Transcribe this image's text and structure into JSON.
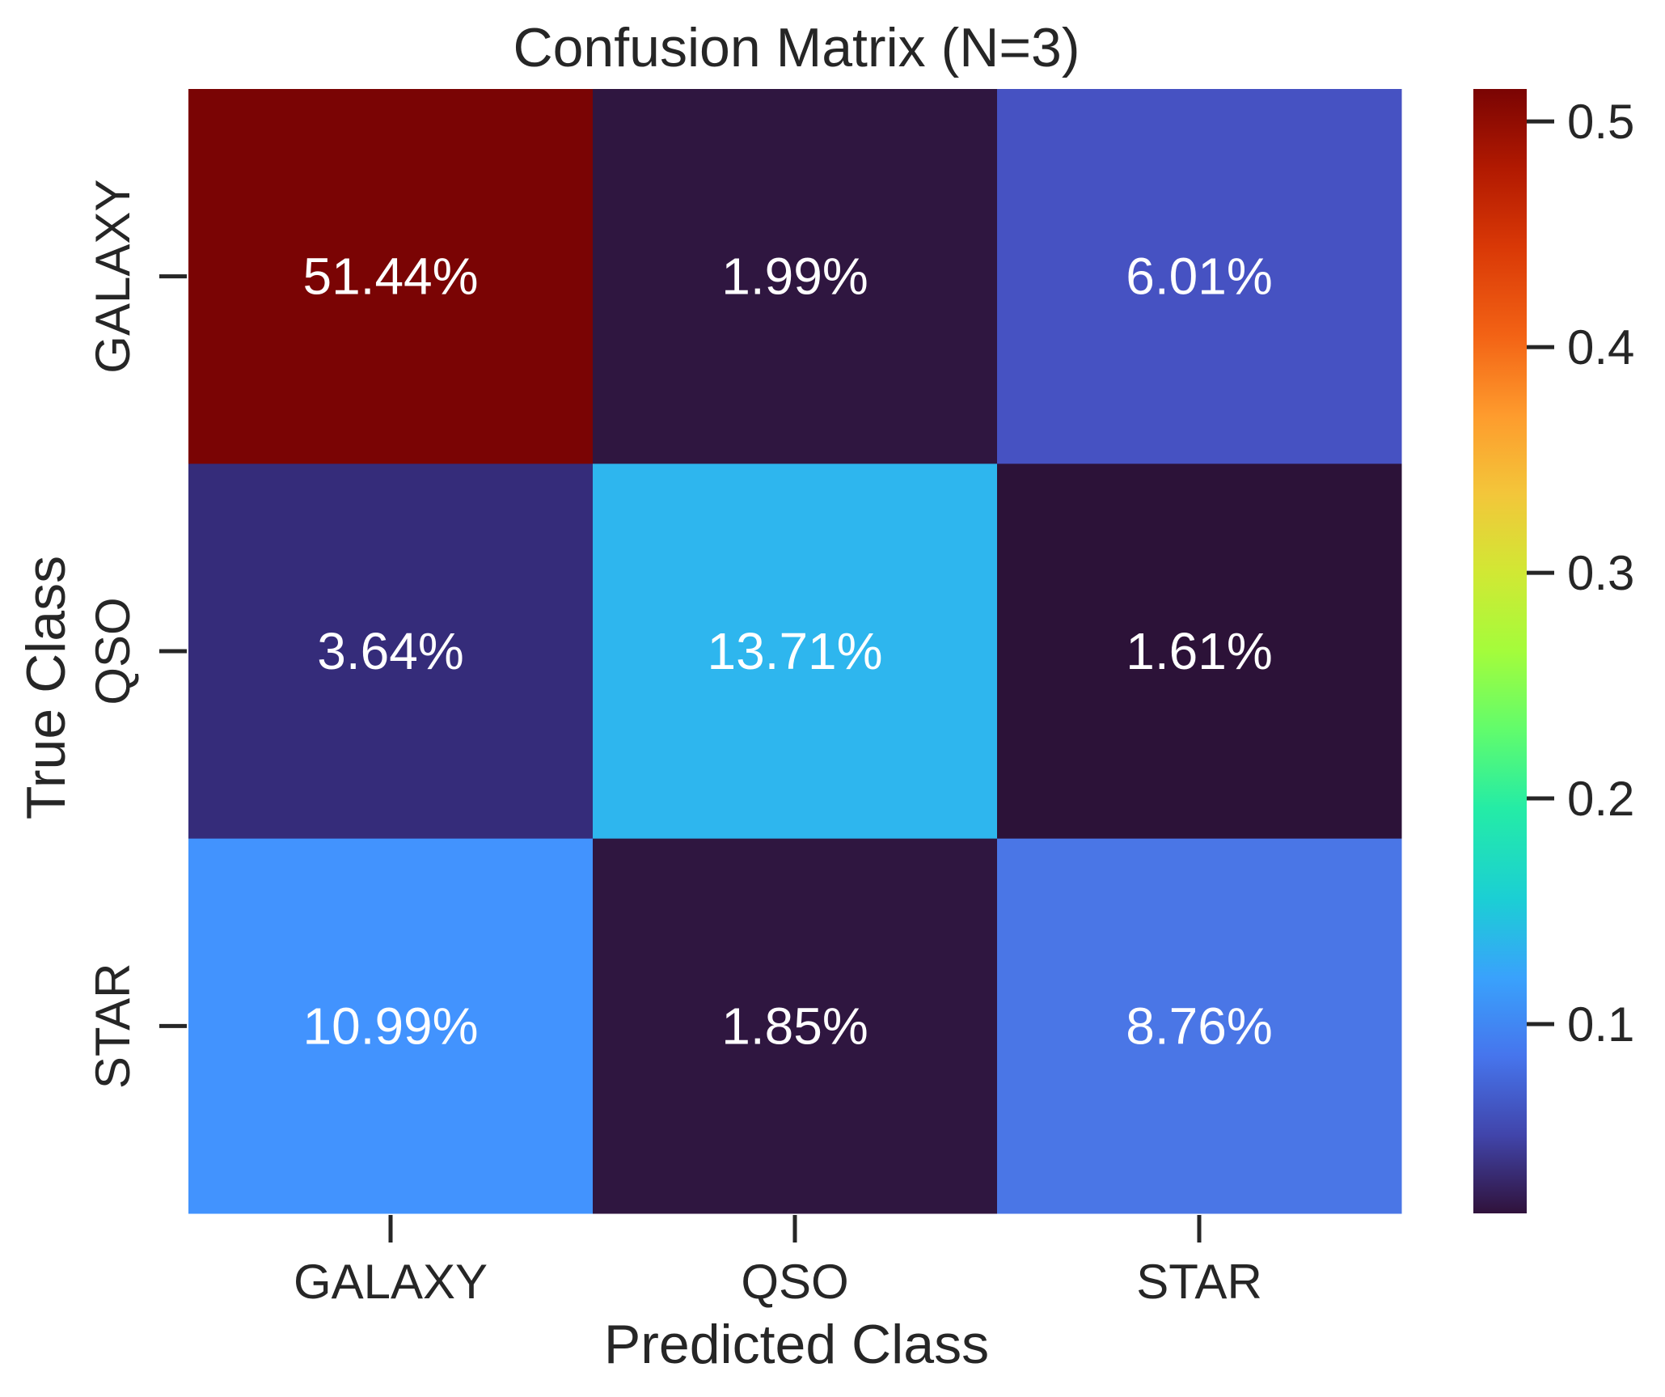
{
  "chart_data": {
    "type": "heatmap",
    "title": "Confusion Matrix (N=3)",
    "xlabel": "Predicted Class",
    "ylabel": "True Class",
    "x_categories": [
      "GALAXY",
      "QSO",
      "STAR"
    ],
    "y_categories": [
      "GALAXY",
      "QSO",
      "STAR"
    ],
    "values": [
      [
        0.5144,
        0.0199,
        0.0601
      ],
      [
        0.0364,
        0.1371,
        0.0161
      ],
      [
        0.1099,
        0.0185,
        0.0876
      ]
    ],
    "annotations": [
      [
        "51.44%",
        "1.99%",
        "6.01%"
      ],
      [
        "3.64%",
        "13.71%",
        "1.61%"
      ],
      [
        "10.99%",
        "1.85%",
        "8.76%"
      ]
    ],
    "colorbar": {
      "colormap": "turbo",
      "range": [
        0.0161,
        0.5144
      ],
      "ticks": [
        0.1,
        0.2,
        0.3,
        0.4,
        0.5
      ],
      "tick_labels": [
        "0.1",
        "0.2",
        "0.3",
        "0.4",
        "0.5"
      ]
    },
    "cell_colors": [
      [
        "#7a0404",
        "#2f1640",
        "#4652c2"
      ],
      [
        "#352c7a",
        "#2eb6ee",
        "#2c1238"
      ],
      [
        "#4293fe",
        "#2f1640",
        "#4a76e6"
      ]
    ]
  }
}
